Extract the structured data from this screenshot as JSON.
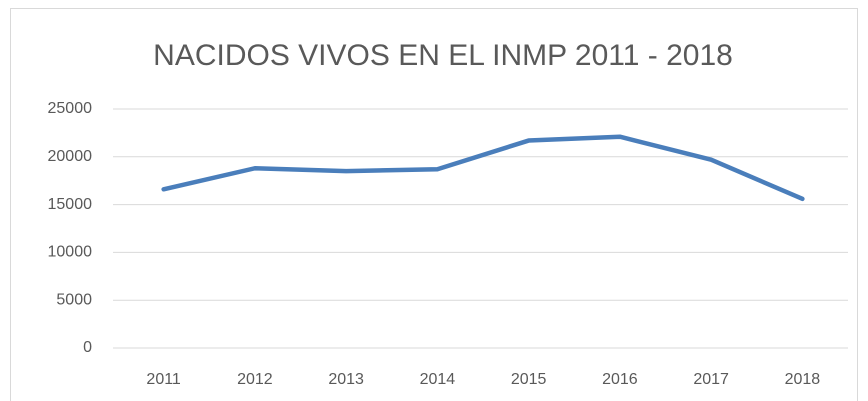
{
  "chart_data": {
    "type": "line",
    "title": "NACIDOS VIVOS EN EL INMP 2011 - 2018",
    "categories": [
      "2011",
      "2012",
      "2013",
      "2014",
      "2015",
      "2016",
      "2017",
      "2018"
    ],
    "series": [
      {
        "name": "Nacidos vivos",
        "color": "#4a7ebb",
        "values": [
          16600,
          18800,
          18500,
          18700,
          21700,
          22100,
          19700,
          15600
        ]
      }
    ],
    "ylim": [
      0,
      25000
    ],
    "yticks": [
      0,
      5000,
      10000,
      15000,
      20000,
      25000
    ],
    "grid": true
  }
}
